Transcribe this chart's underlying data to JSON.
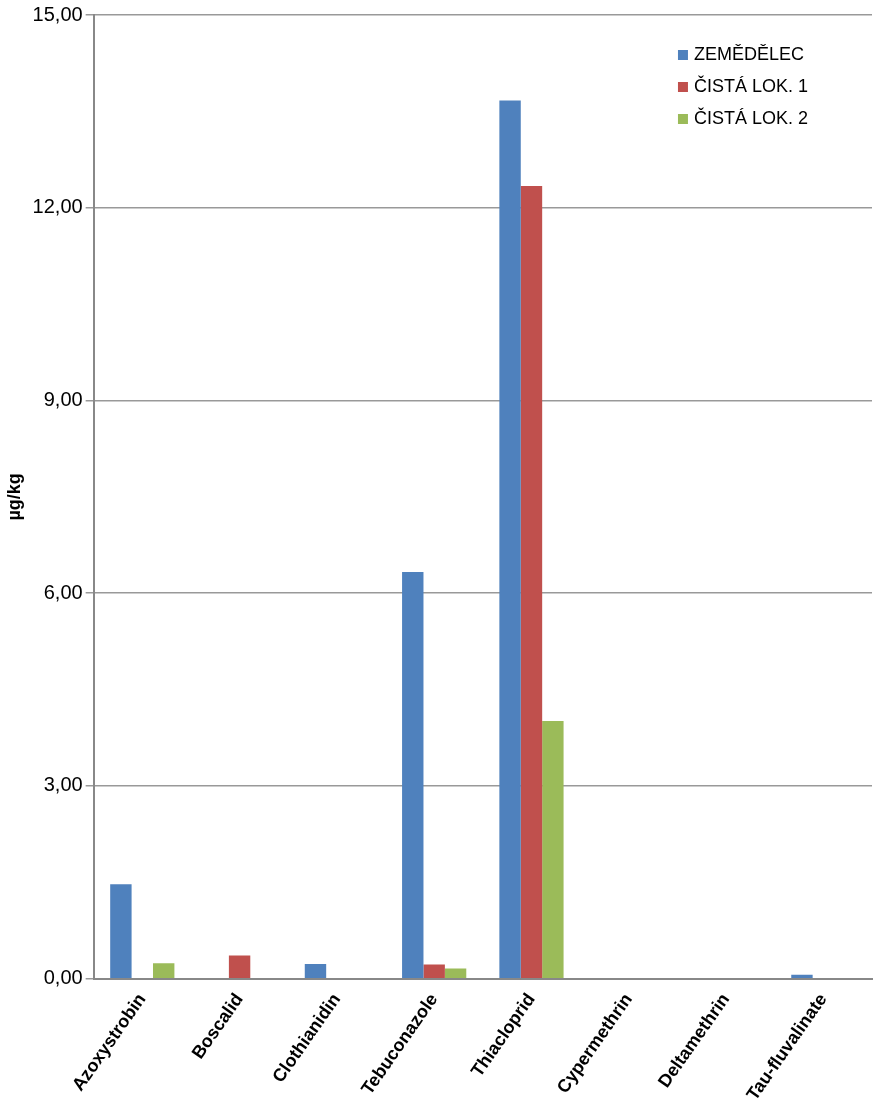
{
  "chart_data": {
    "type": "bar",
    "ylabel": "µg/kg",
    "categories": [
      "Azoxystrobin",
      "Boscalid",
      "Clothianidin",
      "Tebuconazole",
      "Thiacloprid",
      "Cypermethrin",
      "Deltamethrin",
      "Tau-fluvalinate"
    ],
    "series": [
      {
        "name": "ZEMĚDĚLEC",
        "color": "#4f81bd",
        "values": [
          1.47,
          0,
          0.23,
          6.33,
          13.67,
          0,
          0,
          0.06
        ]
      },
      {
        "name": "ČISTÁ LOK. 1",
        "color": "#c0504d",
        "values": [
          0,
          0.36,
          0,
          0.22,
          12.34,
          0,
          0,
          0
        ]
      },
      {
        "name": "ČISTÁ LOK. 2",
        "color": "#9bbb59",
        "values": [
          0.24,
          0,
          0,
          0.16,
          4.01,
          0,
          0,
          0
        ]
      }
    ],
    "ylim": [
      0,
      15
    ],
    "yticks": [
      {
        "value": 0,
        "label": "0,00"
      },
      {
        "value": 3,
        "label": "3,00"
      },
      {
        "value": 6,
        "label": "6,00"
      },
      {
        "value": 9,
        "label": "9,00"
      },
      {
        "value": 12,
        "label": "12,00"
      },
      {
        "value": 15,
        "label": "15,00"
      }
    ],
    "grid": "y",
    "legend": "top right"
  }
}
